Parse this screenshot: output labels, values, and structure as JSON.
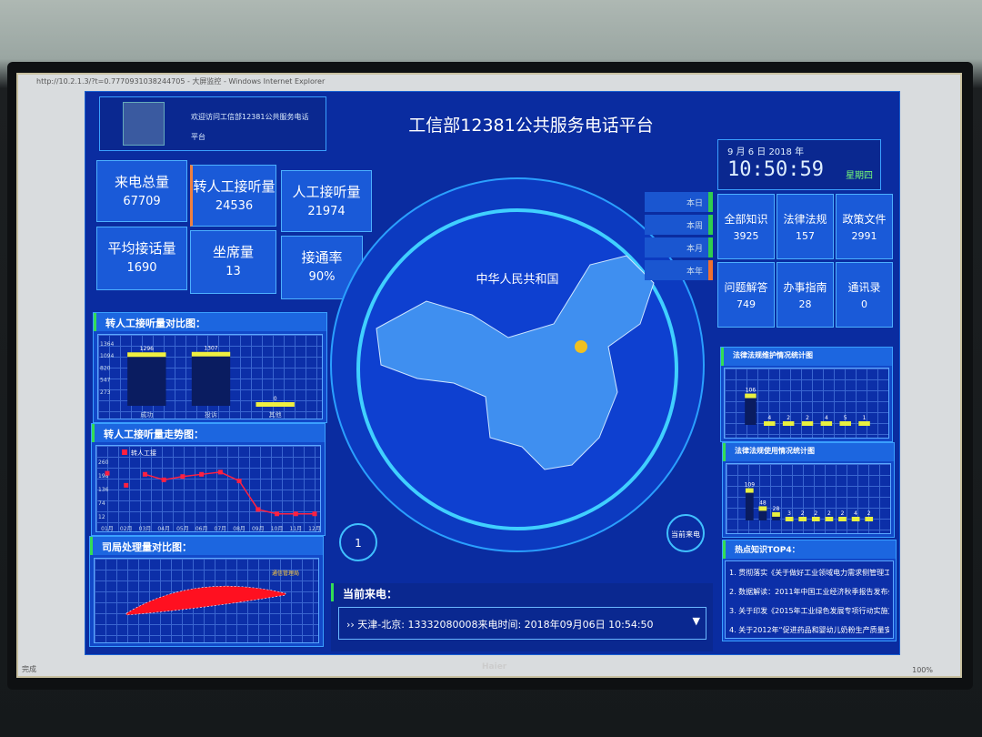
{
  "window": {
    "title": "http://10.2.1.3/?t=0.7770931038244705 - 大屏监控 - Windows Internet Explorer",
    "status": "完成",
    "zoom": "100%",
    "brand": "Haier"
  },
  "header": {
    "welcome": "欢迎访问工信部12381公共服务电话",
    "welcome2": "平台",
    "title": "工信部12381公共服务电话平台",
    "date": "9 月 6 日 2018 年",
    "time": "10:50:59",
    "weekday": "星期四"
  },
  "stats": [
    {
      "label": "来电总量",
      "value": "67709"
    },
    {
      "label": "转人工接听量",
      "value": "24536"
    },
    {
      "label": "人工接听量",
      "value": "21974"
    },
    {
      "label": "平均接话量",
      "value": "1690"
    },
    {
      "label": "坐席量",
      "value": "13"
    },
    {
      "label": "接通率",
      "value": "90%"
    }
  ],
  "map_tabs": [
    "本日",
    "本周",
    "本月",
    "本年"
  ],
  "knowledge": [
    {
      "label": "全部知识",
      "value": "3925"
    },
    {
      "label": "法律法规",
      "value": "157"
    },
    {
      "label": "政策文件",
      "value": "2991"
    },
    {
      "label": "问题解答",
      "value": "749"
    },
    {
      "label": "办事指南",
      "value": "28"
    },
    {
      "label": "通讯录",
      "value": "0"
    }
  ],
  "map": {
    "title": "中华人民共和国",
    "left_button": "1",
    "right_button": "当前来电",
    "colors": {
      "fill": "#3f8ff0",
      "highlight": "#f0c020"
    }
  },
  "current_call": {
    "label": "当前来电：",
    "text": "天津-北京: 13332080008来电时间: 2018年09月06日 10:54:50"
  },
  "hot_topics": {
    "title": "热点知识TOP4：",
    "items": [
      "1. 贯彻落实《关于做好工业领域电力需求侧管理工",
      "2. 数据解读：2011年中国工业经济秋季报告发布会",
      "3. 关于印发《2015年工业绿色发展专项行动实施方",
      "4. 关于2012年“促进药品和婴幼儿奶粉生产质量安"
    ]
  },
  "chart_data": [
    {
      "type": "bar",
      "title": "转人工接听量对比图：",
      "categories": [
        "成功",
        "投诉",
        "其他"
      ],
      "values": [
        1296,
        1307,
        0
      ],
      "yticks": [
        "1364",
        "1094",
        "820",
        "547",
        "273"
      ],
      "ylim": [
        0,
        1500
      ],
      "colors": {
        "bar": "#f0f040"
      }
    },
    {
      "type": "line",
      "title": "转人工接听量走势图：",
      "legend": "转人工接",
      "categories": [
        "01月",
        "02月",
        "03月",
        "04月",
        "05月",
        "06月",
        "07月",
        "08月",
        "09月",
        "10月",
        "11月",
        "12月"
      ],
      "values": [
        215,
        160,
        210,
        185,
        200,
        210,
        220,
        180,
        50,
        30,
        30,
        30
      ],
      "yticks": [
        "260",
        "198",
        "136",
        "74",
        "12"
      ],
      "ylim": [
        0,
        290
      ],
      "colors": {
        "line": "#ff2040"
      }
    },
    {
      "type": "area",
      "title": "司局处理量对比图：",
      "annotation": "通信管理局",
      "colors": {
        "fill": "#ff1020"
      }
    },
    {
      "type": "bar",
      "title": "法律法规维护情况统计图",
      "values": [
        106,
        4,
        2,
        2,
        4,
        5,
        1
      ],
      "ylim": [
        0,
        160
      ],
      "colors": {
        "bar": "#e8f040"
      }
    },
    {
      "type": "bar",
      "title": "法律法规使用情况统计图",
      "values": [
        109,
        48,
        28,
        3,
        2,
        2,
        2,
        2,
        4,
        2
      ],
      "ylim": [
        0,
        160
      ],
      "colors": {
        "bar": "#e8f040"
      }
    }
  ]
}
